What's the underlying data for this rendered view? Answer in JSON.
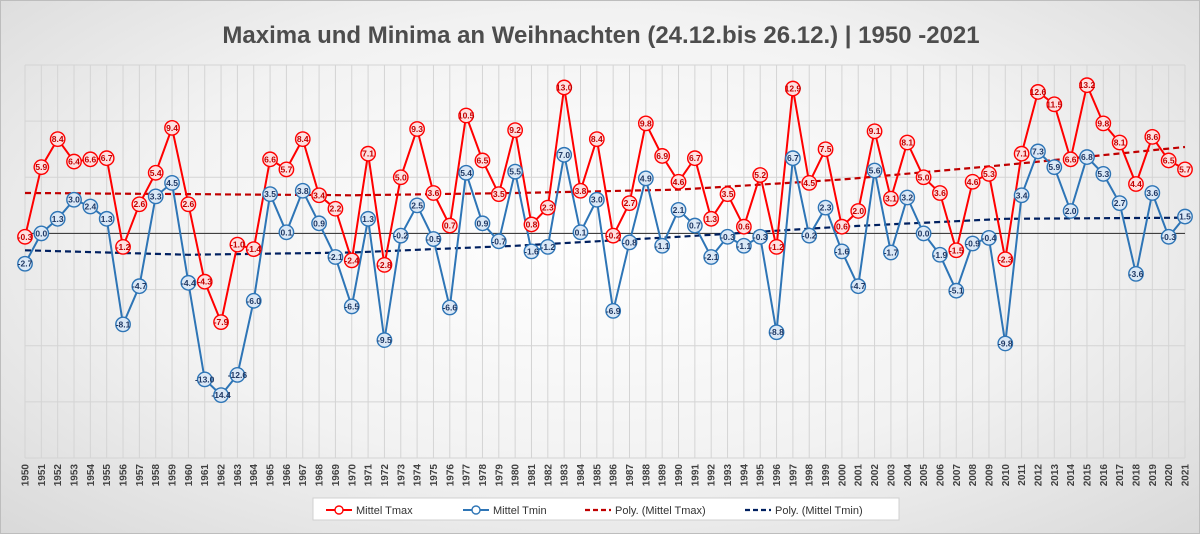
{
  "chart_data": {
    "type": "line",
    "title": "Maxima und Minima an Weihnachten (24.12.bis 26.12.) | 1950 -2021",
    "x": [
      1950,
      1951,
      1952,
      1953,
      1954,
      1955,
      1956,
      1957,
      1958,
      1959,
      1960,
      1961,
      1962,
      1963,
      1964,
      1965,
      1966,
      1967,
      1968,
      1969,
      1970,
      1971,
      1972,
      1973,
      1974,
      1975,
      1976,
      1977,
      1978,
      1979,
      1980,
      1981,
      1982,
      1983,
      1984,
      1985,
      1986,
      1987,
      1988,
      1989,
      1990,
      1991,
      1992,
      1993,
      1994,
      1995,
      1996,
      1997,
      1998,
      1999,
      2000,
      2001,
      2002,
      2003,
      2004,
      2005,
      2006,
      2007,
      2008,
      2009,
      2010,
      2011,
      2012,
      2013,
      2014,
      2015,
      2016,
      2017,
      2018,
      2019,
      2020,
      2021
    ],
    "xlabels": [
      "1950",
      "1951",
      "1952",
      "1953",
      "1954",
      "1955",
      "1956",
      "1957",
      "1958",
      "1959",
      "1960",
      "1961",
      "1962",
      "1963",
      "1964",
      "1965",
      "1966",
      "1967",
      "1968",
      "1969",
      "1970",
      "1971",
      "1972",
      "1973",
      "1974",
      "1975",
      "1976",
      "1977",
      "1978",
      "1979",
      "1980",
      "1981",
      "1982",
      "1983",
      "1984",
      "1985",
      "1986",
      "1987",
      "1988",
      "1989",
      "1990",
      "1991",
      "1992",
      "1993",
      "1994",
      "1995",
      "1996",
      "1997",
      "1998",
      "1999",
      "2000",
      "2001",
      "2002",
      "2003",
      "2004",
      "2005",
      "2006",
      "2007",
      "2008",
      "2009",
      "2010",
      "2011",
      "2012",
      "2013",
      "2014",
      "2015",
      "2016",
      "2017",
      "2018",
      "2019",
      "2020",
      "2021"
    ],
    "ylim": [
      -20,
      15
    ],
    "grid": true,
    "legend": "bottom",
    "series": [
      {
        "name": "Mittel Tmax",
        "color": "#ff0000",
        "values": [
          -0.3,
          5.9,
          8.4,
          6.4,
          6.6,
          6.7,
          -1.2,
          2.6,
          5.4,
          9.4,
          2.6,
          -4.3,
          -7.9,
          -1.0,
          -1.4,
          6.6,
          5.7,
          8.4,
          3.4,
          2.2,
          -2.4,
          7.1,
          -2.8,
          5.0,
          9.3,
          3.6,
          0.7,
          10.5,
          6.5,
          3.5,
          9.2,
          0.8,
          2.3,
          13.0,
          3.8,
          8.4,
          -0.2,
          2.7,
          9.8,
          6.9,
          4.6,
          6.7,
          1.3,
          3.5,
          0.6,
          5.2,
          -1.2,
          12.9,
          4.5,
          7.5,
          0.6,
          2.0,
          9.1,
          3.1,
          8.1,
          5.0,
          3.6,
          -1.5,
          4.6,
          5.3,
          -2.3,
          7.1,
          12.6,
          11.5,
          6.6,
          13.2,
          9.8,
          8.1,
          4.4,
          8.6,
          6.5,
          5.7
        ],
        "labels": [
          "-0.3",
          "5.9",
          "8.4",
          "6.4",
          "6.6",
          "6.7",
          "-1.2",
          "2.6",
          "5.4",
          "9.4",
          "2.6",
          "-4.3",
          "-7.9",
          "-1.0",
          "-1.4",
          "6.6",
          "5.7",
          "8.4",
          "3.4",
          "2.2",
          "-2.4",
          "7.1",
          "-2.8",
          "5.0",
          "9.3",
          "3.6",
          "0.7",
          "10.5",
          "6.5",
          "3.5",
          "9.2",
          "0.8",
          "2.3",
          "13.0",
          "3.8",
          "8.4",
          "-0.2",
          "2.7",
          "9.8",
          "6.9",
          "4.6",
          "6.7",
          "1.3",
          "3.5",
          "0.6",
          "5.2",
          "-1.2",
          "12.9",
          "4.5",
          "7.5",
          "0.6",
          "2.0",
          "9.1",
          "3.1",
          "8.1",
          "5.0",
          "3.6",
          "-1.5",
          "4.6",
          "5.3",
          "-2.3",
          "7.1",
          "12.6",
          "11.5",
          "6.6",
          "13.2",
          "9.8",
          "8.1",
          "4.4",
          "8.6",
          "6.5",
          "5.7"
        ]
      },
      {
        "name": "Mittel Tmin",
        "color": "#2e75b6",
        "values": [
          -2.7,
          0.0,
          1.3,
          3.0,
          2.4,
          1.3,
          -8.1,
          -4.7,
          3.3,
          4.5,
          -4.4,
          -13.0,
          -14.4,
          -12.6,
          -6.0,
          3.5,
          0.1,
          3.8,
          0.9,
          -2.1,
          -6.5,
          1.3,
          -9.5,
          -0.2,
          2.5,
          -0.5,
          -6.6,
          5.4,
          0.9,
          -0.7,
          5.5,
          -1.6,
          -1.2,
          7.0,
          0.1,
          3.0,
          -6.9,
          -0.8,
          4.9,
          -1.1,
          2.1,
          0.7,
          -2.1,
          -0.3,
          -1.1,
          -0.3,
          -8.8,
          6.7,
          -0.2,
          2.3,
          -1.6,
          -4.7,
          5.6,
          -1.7,
          3.2,
          0.0,
          -1.9,
          -5.1,
          -0.9,
          -0.4,
          -9.8,
          3.4,
          7.3,
          5.9,
          2.0,
          6.8,
          5.3,
          2.7,
          -3.6,
          3.6,
          -0.3,
          1.5
        ],
        "labels": [
          "-2.7",
          "0.0",
          "1.3",
          "3.0",
          "2.4",
          "1.3",
          "-8.1",
          "-4.7",
          "3.3",
          "4.5",
          "-4.4",
          "-13.0",
          "-14.4",
          "-12.6",
          "-6.0",
          "3.5",
          "0.1",
          "3.8",
          "0.9",
          "-2.1",
          "-6.5",
          "1.3",
          "-9.5",
          "-0.2",
          "2.5",
          "-0.5",
          "-6.6",
          "5.4",
          "0.9",
          "-0.7",
          "5.5",
          "-1.6",
          "-1.2",
          "7.0",
          "0.1",
          "3.0",
          "-6.9",
          "-0.8",
          "4.9",
          "-1.1",
          "2.1",
          "0.7",
          "-2.1",
          "-0.3",
          "-1.1",
          "-0.3",
          "-8.8",
          "6.7",
          "-0.2",
          "2.3",
          "-1.6",
          "-4.7",
          "5.6",
          "-1.7",
          "3.2",
          "0.0",
          "-1.9",
          "-5.1",
          "-0.9",
          "-0.4",
          "-9.8",
          "3.4",
          "7.3",
          "5.9",
          "2.0",
          "6.8",
          "5.3",
          "2.7",
          "-3.6",
          "3.6",
          "-0.3",
          "1.5"
        ]
      },
      {
        "name": "Poly. (Mittel Tmax)",
        "color": "#c00000",
        "dash": true,
        "trend_points": [
          [
            1950,
            3.6
          ],
          [
            1960,
            3.5
          ],
          [
            1970,
            3.4
          ],
          [
            1980,
            3.6
          ],
          [
            1990,
            3.9
          ],
          [
            2000,
            4.8
          ],
          [
            2010,
            6.1
          ],
          [
            2021,
            7.7
          ]
        ]
      },
      {
        "name": "Poly. (Mittel Tmin)",
        "color": "#002060",
        "dash": true,
        "trend_points": [
          [
            1950,
            -1.5
          ],
          [
            1960,
            -1.9
          ],
          [
            1970,
            -1.7
          ],
          [
            1980,
            -1.1
          ],
          [
            1990,
            -0.3
          ],
          [
            2000,
            0.6
          ],
          [
            2010,
            1.3
          ],
          [
            2021,
            1.4
          ]
        ]
      }
    ],
    "legend_entries": [
      "Mittel Tmax",
      "Mittel Tmin",
      "Poly. (Mittel Tmax)",
      "Poly. (Mittel Tmin)"
    ]
  }
}
